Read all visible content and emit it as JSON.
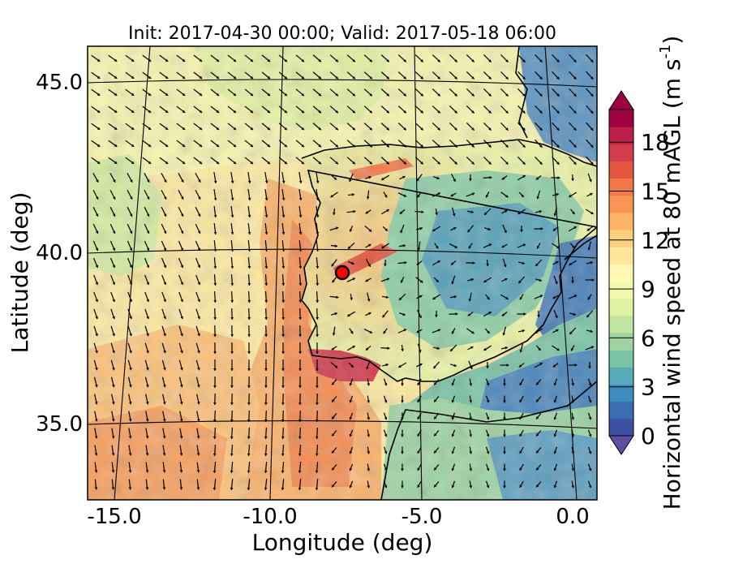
{
  "title": "Init: 2017-04-30 00:00; Valid: 2017-05-18 06:00",
  "xlabel": "Longitude (deg)",
  "ylabel": "Latitude (deg)",
  "colorbar": {
    "label": "Horizontal wind speed at 80 mAGL (m s",
    "label_exp": "-1",
    "label_close": ")",
    "ticks": [
      "0",
      "3",
      "6",
      "9",
      "12",
      "15",
      "18"
    ],
    "tick_values": [
      0,
      3,
      6,
      9,
      12,
      15,
      18
    ],
    "range": [
      0,
      20
    ],
    "extend": "both",
    "colormap": "Spectral_r",
    "colors": [
      "#3d4fa3",
      "#3a6db2",
      "#3c8cbd",
      "#58a9b9",
      "#79c3a6",
      "#9dd4a2",
      "#c1e59f",
      "#def2a1",
      "#f2f9ae",
      "#fef8b2",
      "#fee79a",
      "#fdd081",
      "#fdb567",
      "#f99656",
      "#f47748",
      "#e4573f",
      "#d23c4e",
      "#bd1f4a",
      "#9e0142"
    ],
    "under_color": "#5e4fa2",
    "over_color": "#9e0142"
  },
  "x_ticks": [
    "-15.0",
    "-10.0",
    "-5.0",
    "0.0"
  ],
  "x_tick_values": [
    -15,
    -10,
    -5,
    0
  ],
  "y_ticks": [
    "45.0",
    "40.0",
    "35.0"
  ],
  "y_tick_values": [
    45,
    40,
    35
  ],
  "map": {
    "region": "Iberian Peninsula",
    "lon_range": [
      -16,
      0.3
    ],
    "lat_range": [
      32.8,
      46.2
    ],
    "projection": "conic",
    "overlay": "wind vectors",
    "marker": {
      "lon": -7.6,
      "lat": 39.8,
      "color": "#ff0000"
    }
  }
}
